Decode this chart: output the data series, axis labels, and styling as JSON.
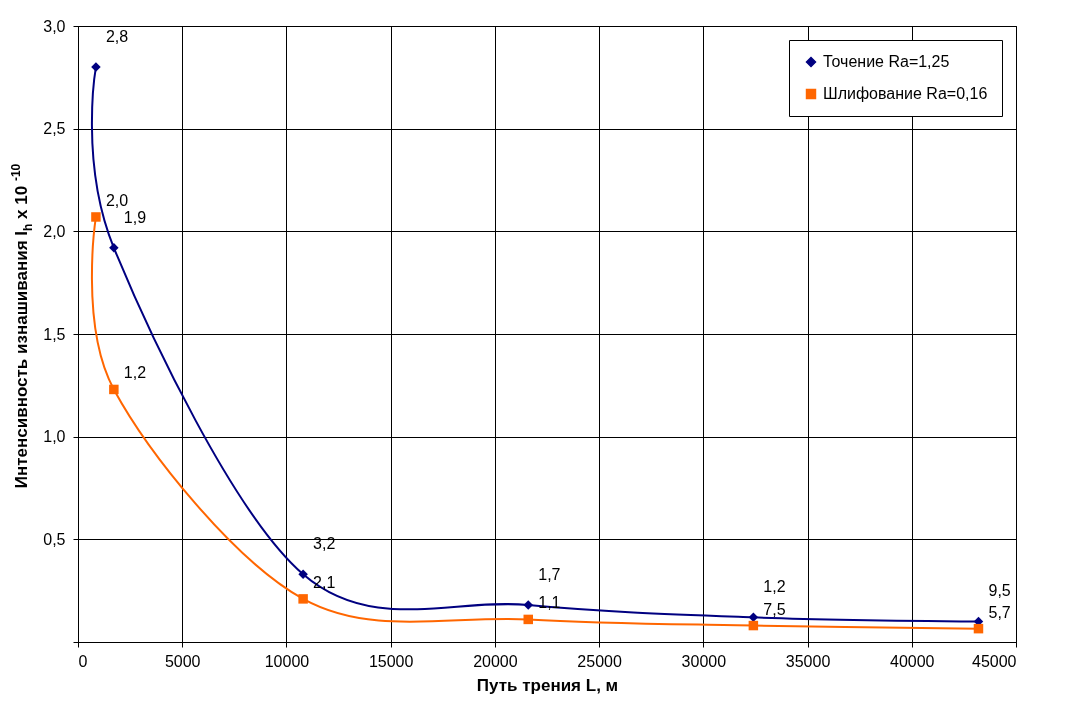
{
  "chart_data": {
    "type": "line",
    "xlabel": "Путь трения L, м",
    "ylabel": "Интенсивность изнашивания I$_{h}$ x 10 $^{-10}$",
    "x": [
      860,
      1720,
      10800,
      21600,
      32400,
      43200
    ],
    "series": [
      {
        "name": "Точение Ra=1,25",
        "color": "#000080",
        "marker": "diamond",
        "values": [
          2.8,
          1.92,
          0.33,
          0.18,
          0.12,
          0.1
        ]
      },
      {
        "name": "Шлифование Ra=0,16",
        "color": "#ff6600",
        "marker": "square",
        "values": [
          2.07,
          1.23,
          0.21,
          0.11,
          0.08,
          0.065
        ]
      }
    ],
    "annotations": [
      {
        "text": "2,8",
        "x": 860,
        "y": 2.8
      },
      {
        "text": "1,9",
        "x": 1720,
        "y": 1.92
      },
      {
        "text": "3,2",
        "x": 10800,
        "y": 0.33
      },
      {
        "text": "1,7",
        "x": 21600,
        "y": 0.18
      },
      {
        "text": "1,2",
        "x": 32400,
        "y": 0.12
      },
      {
        "text": "9,5",
        "x": 43200,
        "y": 0.1
      },
      {
        "text": "2,0",
        "x": 860,
        "y": 2.07
      },
      {
        "text": "1,2",
        "x": 1720,
        "y": 1.23
      },
      {
        "text": "2,1",
        "x": 10800,
        "y": 0.21
      },
      {
        "text": "1,1",
        "x": 21600,
        "y": 0.11
      },
      {
        "text": "7,5",
        "x": 32400,
        "y": 0.08
      },
      {
        "text": "5,7",
        "x": 43200,
        "y": 0.065
      }
    ],
    "xlim": [
      0,
      45000
    ],
    "xticks": [
      0,
      5000,
      10000,
      15000,
      20000,
      25000,
      30000,
      35000,
      40000,
      45000
    ],
    "ylim": [
      0,
      3
    ],
    "yticks": [
      {
        "value": 0,
        "label": null
      },
      {
        "value": 0.5,
        "label": "0,5"
      },
      {
        "value": 1,
        "label": "1,0"
      },
      {
        "value": 1.5,
        "label": "1,5"
      },
      {
        "value": 2,
        "label": "2,0"
      },
      {
        "value": 2.5,
        "label": "2,5"
      },
      {
        "value": 3,
        "label": "3,0"
      }
    ],
    "grid": true,
    "legend": "top right",
    "line_style": "solid"
  }
}
